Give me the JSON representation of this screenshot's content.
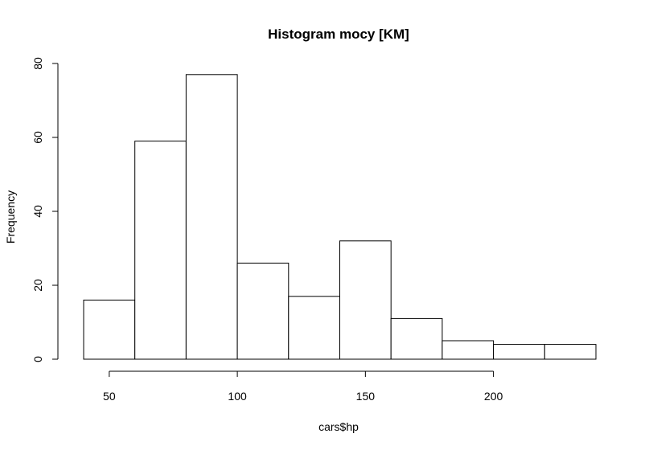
{
  "chart_data": {
    "type": "bar",
    "subtype": "histogram",
    "title": "Histogram mocy [KM]",
    "xlabel": "cars$hp",
    "ylabel": "Frequency",
    "bins": [
      {
        "x0": 40,
        "x1": 60,
        "count": 16
      },
      {
        "x0": 60,
        "x1": 80,
        "count": 59
      },
      {
        "x0": 80,
        "x1": 100,
        "count": 77
      },
      {
        "x0": 100,
        "x1": 120,
        "count": 26
      },
      {
        "x0": 120,
        "x1": 140,
        "count": 17
      },
      {
        "x0": 140,
        "x1": 160,
        "count": 32
      },
      {
        "x0": 160,
        "x1": 180,
        "count": 11
      },
      {
        "x0": 180,
        "x1": 200,
        "count": 5
      },
      {
        "x0": 200,
        "x1": 220,
        "count": 4
      },
      {
        "x0": 220,
        "x1": 240,
        "count": 4
      }
    ],
    "xticks": [
      50,
      100,
      150,
      200
    ],
    "xtick_labels": [
      "50",
      "100",
      "150",
      "200"
    ],
    "yticks": [
      0,
      20,
      40,
      60,
      80
    ],
    "ytick_labels": [
      "0",
      "20",
      "40",
      "60",
      "80"
    ],
    "xlim": [
      40,
      240
    ],
    "ylim": [
      0,
      80
    ],
    "grid": false,
    "bar_fill": "#ffffff",
    "bar_stroke": "#000000"
  }
}
